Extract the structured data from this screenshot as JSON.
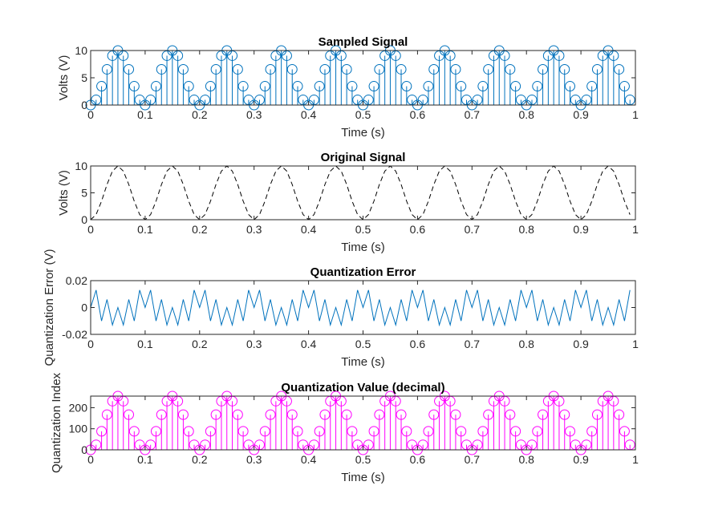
{
  "figure": {
    "background": "#ffffff",
    "axes_color": "#262626"
  },
  "chart_data": [
    {
      "type": "stem",
      "title": "Sampled Signal",
      "xlabel": "Time (s)",
      "ylabel": "Volts (V)",
      "xlim": [
        0,
        1
      ],
      "ylim": [
        0,
        10
      ],
      "xticks": [
        0,
        0.1,
        0.2,
        0.3,
        0.4,
        0.5,
        0.6,
        0.7,
        0.8,
        0.9,
        1
      ],
      "xtick_labels": [
        "0",
        "0.1",
        "0.2",
        "0.3",
        "0.4",
        "0.5",
        "0.6",
        "0.7",
        "0.8",
        "0.9",
        "1"
      ],
      "yticks": [
        0,
        5,
        10
      ],
      "ytick_labels": [
        "0",
        "5",
        "10"
      ],
      "color": "#0072BD",
      "marker": "circle",
      "x": [
        0,
        0.01,
        0.02,
        0.03,
        0.04,
        0.05,
        0.06,
        0.07,
        0.08,
        0.09,
        0.1,
        0.11,
        0.12,
        0.13,
        0.14,
        0.15,
        0.16,
        0.17,
        0.18,
        0.19,
        0.2,
        0.21,
        0.22,
        0.23,
        0.24,
        0.25,
        0.26,
        0.27,
        0.28,
        0.29,
        0.3,
        0.31,
        0.32,
        0.33,
        0.34,
        0.35,
        0.36,
        0.37,
        0.38,
        0.39,
        0.4,
        0.41,
        0.42,
        0.43,
        0.44,
        0.45,
        0.46,
        0.47,
        0.48,
        0.49,
        0.5,
        0.51,
        0.52,
        0.53,
        0.54,
        0.55,
        0.56,
        0.57,
        0.58,
        0.59,
        0.6,
        0.61,
        0.62,
        0.63,
        0.64,
        0.65,
        0.66,
        0.67,
        0.68,
        0.69,
        0.7,
        0.71,
        0.72,
        0.73,
        0.74,
        0.75,
        0.76,
        0.77,
        0.78,
        0.79,
        0.8,
        0.81,
        0.82,
        0.83,
        0.84,
        0.85,
        0.86,
        0.87,
        0.88,
        0.89,
        0.9,
        0.91,
        0.92,
        0.93,
        0.94,
        0.95,
        0.96,
        0.97,
        0.98,
        0.99
      ],
      "y": [
        0,
        0.95,
        3.45,
        6.55,
        9.05,
        10,
        9.05,
        6.55,
        3.45,
        0.95,
        0,
        0.95,
        3.45,
        6.55,
        9.05,
        10,
        9.05,
        6.55,
        3.45,
        0.95,
        0,
        0.95,
        3.45,
        6.55,
        9.05,
        10,
        9.05,
        6.55,
        3.45,
        0.95,
        0,
        0.95,
        3.45,
        6.55,
        9.05,
        10,
        9.05,
        6.55,
        3.45,
        0.95,
        0,
        0.95,
        3.45,
        6.55,
        9.05,
        10,
        9.05,
        6.55,
        3.45,
        0.95,
        0,
        0.95,
        3.45,
        6.55,
        9.05,
        10,
        9.05,
        6.55,
        3.45,
        0.95,
        0,
        0.95,
        3.45,
        6.55,
        9.05,
        10,
        9.05,
        6.55,
        3.45,
        0.95,
        0,
        0.95,
        3.45,
        6.55,
        9.05,
        10,
        9.05,
        6.55,
        3.45,
        0.95,
        0,
        0.95,
        3.45,
        6.55,
        9.05,
        10,
        9.05,
        6.55,
        3.45,
        0.95,
        0,
        0.95,
        3.45,
        6.55,
        9.05,
        10,
        9.05,
        6.55,
        3.45,
        0.95
      ]
    },
    {
      "type": "line",
      "title": "Original Signal",
      "xlabel": "Time (s)",
      "ylabel": "Volts (V)",
      "xlim": [
        0,
        1
      ],
      "ylim": [
        0,
        10
      ],
      "xticks": [
        0,
        0.1,
        0.2,
        0.3,
        0.4,
        0.5,
        0.6,
        0.7,
        0.8,
        0.9,
        1
      ],
      "xtick_labels": [
        "0",
        "0.1",
        "0.2",
        "0.3",
        "0.4",
        "0.5",
        "0.6",
        "0.7",
        "0.8",
        "0.9",
        "1"
      ],
      "yticks": [
        0,
        5,
        10
      ],
      "ytick_labels": [
        "0",
        "5",
        "10"
      ],
      "color": "#000000",
      "line_style": "dashed",
      "x": [
        0,
        0.01,
        0.02,
        0.03,
        0.04,
        0.05,
        0.06,
        0.07,
        0.08,
        0.09,
        0.1,
        0.11,
        0.12,
        0.13,
        0.14,
        0.15,
        0.16,
        0.17,
        0.18,
        0.19,
        0.2,
        0.21,
        0.22,
        0.23,
        0.24,
        0.25,
        0.26,
        0.27,
        0.28,
        0.29,
        0.3,
        0.31,
        0.32,
        0.33,
        0.34,
        0.35,
        0.36,
        0.37,
        0.38,
        0.39,
        0.4,
        0.41,
        0.42,
        0.43,
        0.44,
        0.45,
        0.46,
        0.47,
        0.48,
        0.49,
        0.5,
        0.51,
        0.52,
        0.53,
        0.54,
        0.55,
        0.56,
        0.57,
        0.58,
        0.59,
        0.6,
        0.61,
        0.62,
        0.63,
        0.64,
        0.65,
        0.66,
        0.67,
        0.68,
        0.69,
        0.7,
        0.71,
        0.72,
        0.73,
        0.74,
        0.75,
        0.76,
        0.77,
        0.78,
        0.79,
        0.8,
        0.81,
        0.82,
        0.83,
        0.84,
        0.85,
        0.86,
        0.87,
        0.88,
        0.89,
        0.9,
        0.91,
        0.92,
        0.93,
        0.94,
        0.95,
        0.96,
        0.97,
        0.98,
        0.99
      ],
      "y": [
        0,
        0.95,
        3.45,
        6.55,
        9.05,
        10,
        9.05,
        6.55,
        3.45,
        0.95,
        0,
        0.95,
        3.45,
        6.55,
        9.05,
        10,
        9.05,
        6.55,
        3.45,
        0.95,
        0,
        0.95,
        3.45,
        6.55,
        9.05,
        10,
        9.05,
        6.55,
        3.45,
        0.95,
        0,
        0.95,
        3.45,
        6.55,
        9.05,
        10,
        9.05,
        6.55,
        3.45,
        0.95,
        0,
        0.95,
        3.45,
        6.55,
        9.05,
        10,
        9.05,
        6.55,
        3.45,
        0.95,
        0,
        0.95,
        3.45,
        6.55,
        9.05,
        10,
        9.05,
        6.55,
        3.45,
        0.95,
        0,
        0.95,
        3.45,
        6.55,
        9.05,
        10,
        9.05,
        6.55,
        3.45,
        0.95,
        0,
        0.95,
        3.45,
        6.55,
        9.05,
        10,
        9.05,
        6.55,
        3.45,
        0.95,
        0,
        0.95,
        3.45,
        6.55,
        9.05,
        10,
        9.05,
        6.55,
        3.45,
        0.95,
        0,
        0.95,
        3.45,
        6.55,
        9.05,
        10,
        9.05,
        6.55,
        3.45,
        0.95
      ]
    },
    {
      "type": "line",
      "title": "Quantization Error",
      "xlabel": "Time (s)",
      "ylabel": "Quantization Error (V)",
      "xlim": [
        0,
        1
      ],
      "ylim": [
        -0.02,
        0.02
      ],
      "xticks": [
        0,
        0.1,
        0.2,
        0.3,
        0.4,
        0.5,
        0.6,
        0.7,
        0.8,
        0.9,
        1
      ],
      "xtick_labels": [
        "0",
        "0.1",
        "0.2",
        "0.3",
        "0.4",
        "0.5",
        "0.6",
        "0.7",
        "0.8",
        "0.9",
        "1"
      ],
      "yticks": [
        -0.02,
        0,
        0.02
      ],
      "ytick_labels": [
        "-0.02",
        "0",
        "0.02"
      ],
      "color": "#0072BD",
      "line_style": "solid",
      "x": [
        0,
        0.01,
        0.02,
        0.03,
        0.04,
        0.05,
        0.06,
        0.07,
        0.08,
        0.09,
        0.1,
        0.11,
        0.12,
        0.13,
        0.14,
        0.15,
        0.16,
        0.17,
        0.18,
        0.19,
        0.2,
        0.21,
        0.22,
        0.23,
        0.24,
        0.25,
        0.26,
        0.27,
        0.28,
        0.29,
        0.3,
        0.31,
        0.32,
        0.33,
        0.34,
        0.35,
        0.36,
        0.37,
        0.38,
        0.39,
        0.4,
        0.41,
        0.42,
        0.43,
        0.44,
        0.45,
        0.46,
        0.47,
        0.48,
        0.49,
        0.5,
        0.51,
        0.52,
        0.53,
        0.54,
        0.55,
        0.56,
        0.57,
        0.58,
        0.59,
        0.6,
        0.61,
        0.62,
        0.63,
        0.64,
        0.65,
        0.66,
        0.67,
        0.68,
        0.69,
        0.7,
        0.71,
        0.72,
        0.73,
        0.74,
        0.75,
        0.76,
        0.77,
        0.78,
        0.79,
        0.8,
        0.81,
        0.82,
        0.83,
        0.84,
        0.85,
        0.86,
        0.87,
        0.88,
        0.89,
        0.9,
        0.91,
        0.92,
        0.93,
        0.94,
        0.95,
        0.96,
        0.97,
        0.98,
        0.99
      ],
      "y": [
        0,
        0.013,
        -0.01,
        0.006,
        -0.013,
        0,
        -0.013,
        0.006,
        -0.01,
        0.013,
        0,
        0.013,
        -0.01,
        0.006,
        -0.013,
        0,
        -0.013,
        0.006,
        -0.01,
        0.013,
        0,
        0.013,
        -0.01,
        0.006,
        -0.013,
        0,
        -0.013,
        0.006,
        -0.01,
        0.013,
        0,
        0.013,
        -0.01,
        0.006,
        -0.013,
        0,
        -0.013,
        0.006,
        -0.01,
        0.013,
        0,
        0.013,
        -0.01,
        0.006,
        -0.013,
        0,
        -0.013,
        0.006,
        -0.01,
        0.013,
        0,
        0.013,
        -0.01,
        0.006,
        -0.013,
        0,
        -0.013,
        0.006,
        -0.01,
        0.013,
        0,
        0.013,
        -0.01,
        0.006,
        -0.013,
        0,
        -0.013,
        0.006,
        -0.01,
        0.013,
        0,
        0.013,
        -0.01,
        0.006,
        -0.013,
        0,
        -0.013,
        0.006,
        -0.01,
        0.013,
        0,
        0.013,
        -0.01,
        0.006,
        -0.013,
        0,
        -0.013,
        0.006,
        -0.01,
        0.013,
        0,
        0.013,
        -0.01,
        0.006,
        -0.013,
        0,
        -0.013,
        0.006,
        -0.01,
        0.013
      ]
    },
    {
      "type": "stem",
      "title": "Quantization Value (decimal)",
      "xlabel": "Time (s)",
      "ylabel": "Quantization Index",
      "xlim": [
        0,
        1
      ],
      "ylim": [
        0,
        255
      ],
      "xticks": [
        0,
        0.1,
        0.2,
        0.3,
        0.4,
        0.5,
        0.6,
        0.7,
        0.8,
        0.9,
        1
      ],
      "xtick_labels": [
        "0",
        "0.1",
        "0.2",
        "0.3",
        "0.4",
        "0.5",
        "0.6",
        "0.7",
        "0.8",
        "0.9",
        "1"
      ],
      "yticks": [
        0,
        100,
        200
      ],
      "ytick_labels": [
        "0",
        "100",
        "200"
      ],
      "color": "#FF00FF",
      "marker": "circle",
      "x": [
        0,
        0.01,
        0.02,
        0.03,
        0.04,
        0.05,
        0.06,
        0.07,
        0.08,
        0.09,
        0.1,
        0.11,
        0.12,
        0.13,
        0.14,
        0.15,
        0.16,
        0.17,
        0.18,
        0.19,
        0.2,
        0.21,
        0.22,
        0.23,
        0.24,
        0.25,
        0.26,
        0.27,
        0.28,
        0.29,
        0.3,
        0.31,
        0.32,
        0.33,
        0.34,
        0.35,
        0.36,
        0.37,
        0.38,
        0.39,
        0.4,
        0.41,
        0.42,
        0.43,
        0.44,
        0.45,
        0.46,
        0.47,
        0.48,
        0.49,
        0.5,
        0.51,
        0.52,
        0.53,
        0.54,
        0.55,
        0.56,
        0.57,
        0.58,
        0.59,
        0.6,
        0.61,
        0.62,
        0.63,
        0.64,
        0.65,
        0.66,
        0.67,
        0.68,
        0.69,
        0.7,
        0.71,
        0.72,
        0.73,
        0.74,
        0.75,
        0.76,
        0.77,
        0.78,
        0.79,
        0.8,
        0.81,
        0.82,
        0.83,
        0.84,
        0.85,
        0.86,
        0.87,
        0.88,
        0.89,
        0.9,
        0.91,
        0.92,
        0.93,
        0.94,
        0.95,
        0.96,
        0.97,
        0.98,
        0.99
      ],
      "y": [
        0,
        24,
        88,
        167,
        231,
        255,
        231,
        167,
        88,
        24,
        0,
        24,
        88,
        167,
        231,
        255,
        231,
        167,
        88,
        24,
        0,
        24,
        88,
        167,
        231,
        255,
        231,
        167,
        88,
        24,
        0,
        24,
        88,
        167,
        231,
        255,
        231,
        167,
        88,
        24,
        0,
        24,
        88,
        167,
        231,
        255,
        231,
        167,
        88,
        24,
        0,
        24,
        88,
        167,
        231,
        255,
        231,
        167,
        88,
        24,
        0,
        24,
        88,
        167,
        231,
        255,
        231,
        167,
        88,
        24,
        0,
        24,
        88,
        167,
        231,
        255,
        231,
        167,
        88,
        24,
        0,
        24,
        88,
        167,
        231,
        255,
        231,
        167,
        88,
        24,
        0,
        24,
        88,
        167,
        231,
        255,
        231,
        167,
        88,
        24
      ]
    }
  ]
}
